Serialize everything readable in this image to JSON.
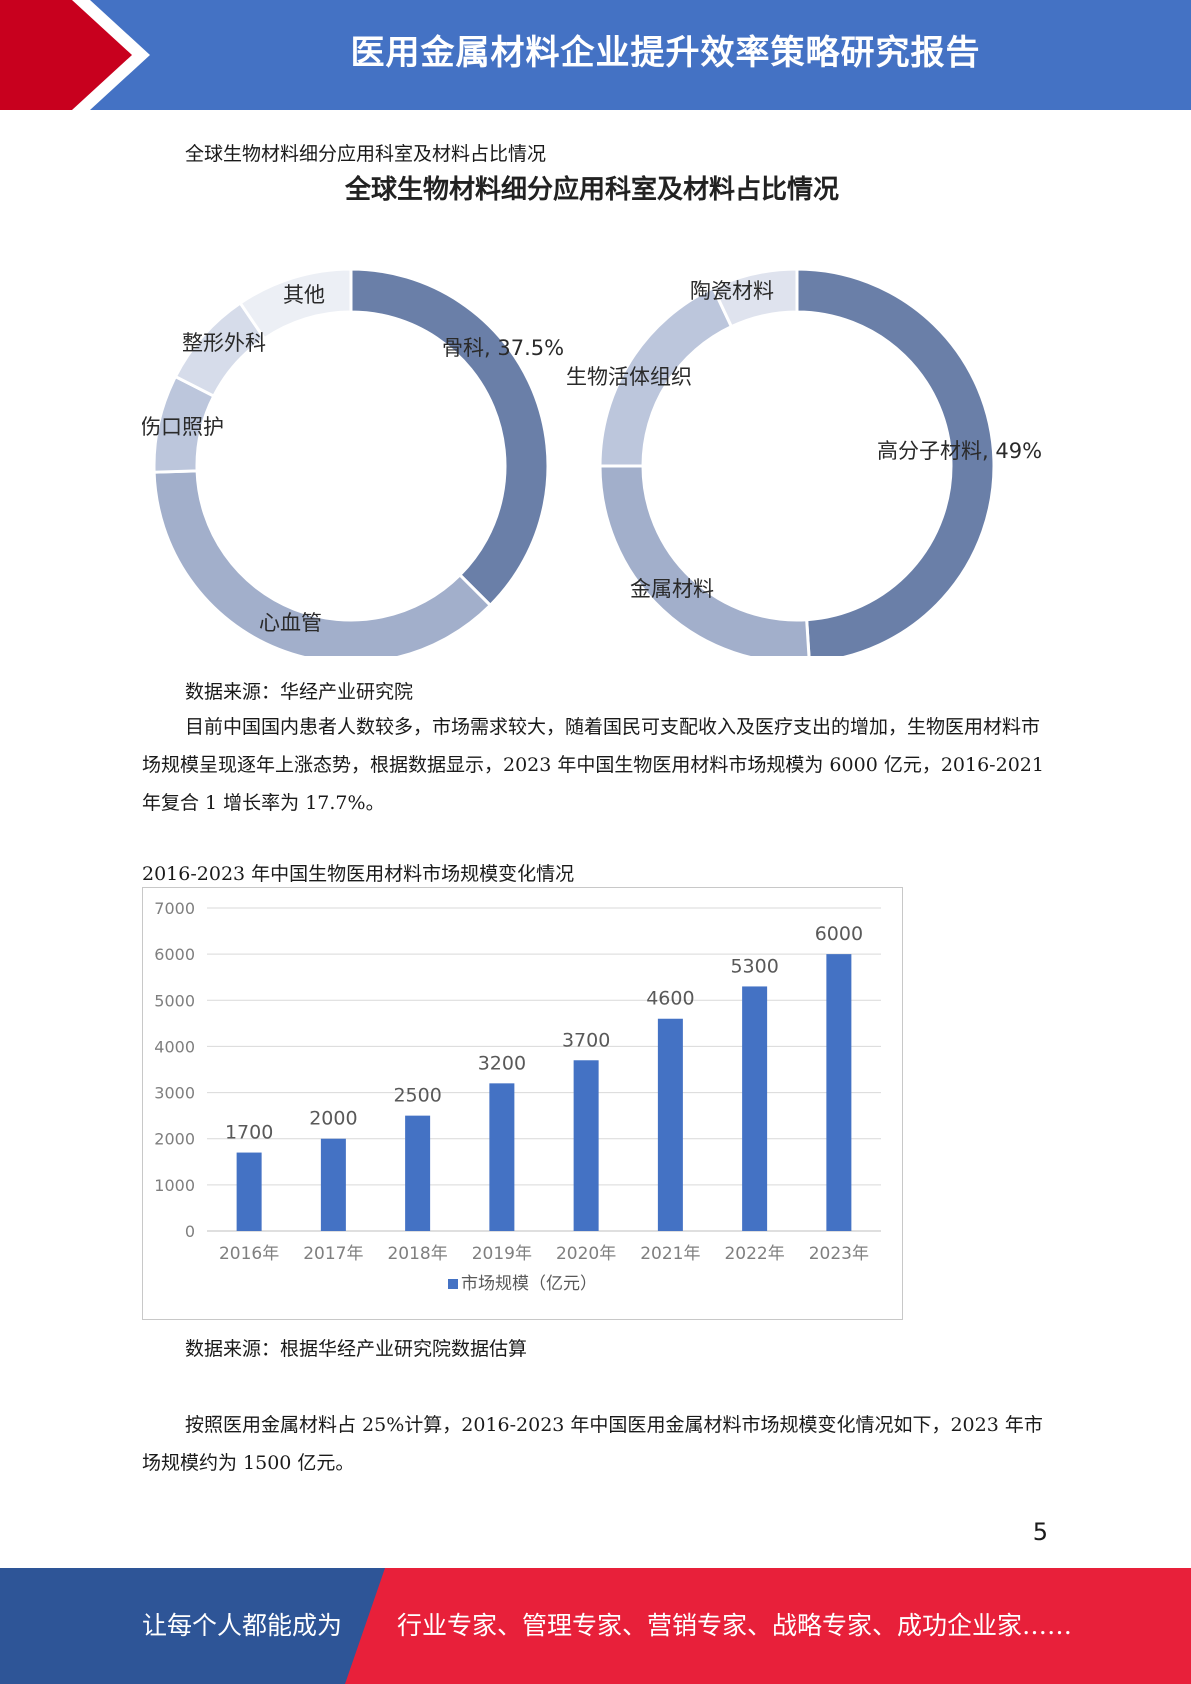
{
  "header": {
    "title": "医用金属材料企业提升效率策略研究报告"
  },
  "figure1": {
    "caption": "全球生物材料细分应用科室及材料占比情况",
    "inner_title": "全球生物材料细分应用科室及材料占比情况",
    "source": "数据来源：华经产业研究院"
  },
  "paragraph1": "目前中国国内患者人数较多，市场需求较大，随着国民可支配收入及医疗支出的增加，生物医用材料市场规模呈现逐年上涨态势，根据数据显示，2023 年中国生物医用材料市场规模为 6000 亿元，2016-2021 年复合 1 增长率为 17.7%。",
  "figure2": {
    "caption": "2016-2023 年中国生物医用材料市场规模变化情况",
    "source": "数据来源：根据华经产业研究院数据估算"
  },
  "paragraph2": "按照医用金属材料占 25%计算，2016-2023 年中国医用金属材料市场规模变化情况如下，2023 年市场规模约为 1500 亿元。",
  "page_number": "5",
  "footer": {
    "left_text": "让每个人都能成为",
    "right_text": "行业专家、管理专家、营销专家、战略专家、成功企业家……"
  },
  "colors": {
    "header_blue": "#4472c4",
    "accent_red": "#e8203a",
    "footer_blue": "#2e5597",
    "bar_blue": "#4472c4"
  },
  "chart_data": [
    {
      "type": "pie",
      "title": "全球生物材料细分应用科室及材料占比情况",
      "slices": [
        {
          "label": "骨科, 37.5%",
          "value": 37.5,
          "color": "#6a7fa8"
        },
        {
          "label": "心血管",
          "value": 37.0,
          "color": "#a2afcb"
        },
        {
          "label": "伤口照护",
          "value": 8.0,
          "color": "#bcc6dc"
        },
        {
          "label": "整形外科",
          "value": 8.0,
          "color": "#d6dcea"
        },
        {
          "label": "其他",
          "value": 9.5,
          "color": "#eceff5"
        }
      ]
    },
    {
      "type": "pie",
      "title": "",
      "slices": [
        {
          "label": "高分子材料, 49%",
          "value": 49,
          "color": "#6a7fa8"
        },
        {
          "label": "金属材料",
          "value": 26,
          "color": "#a2afcb"
        },
        {
          "label": "生物活体组织",
          "value": 18,
          "color": "#bcc6dc"
        },
        {
          "label": "陶瓷材料",
          "value": 7,
          "color": "#dfe3ee"
        }
      ]
    },
    {
      "type": "bar",
      "title": "",
      "categories": [
        "2016年",
        "2017年",
        "2018年",
        "2019年",
        "2020年",
        "2021年",
        "2022年",
        "2023年"
      ],
      "series": [
        {
          "name": "市场规模（亿元）",
          "values": [
            1700,
            2000,
            2500,
            3200,
            3700,
            4600,
            5300,
            6000
          ]
        }
      ],
      "ylim": [
        0,
        7000
      ],
      "yticks": [
        0,
        1000,
        2000,
        3000,
        4000,
        5000,
        6000,
        7000
      ],
      "grid": true,
      "legend": "bottom",
      "data_labels": true
    }
  ]
}
